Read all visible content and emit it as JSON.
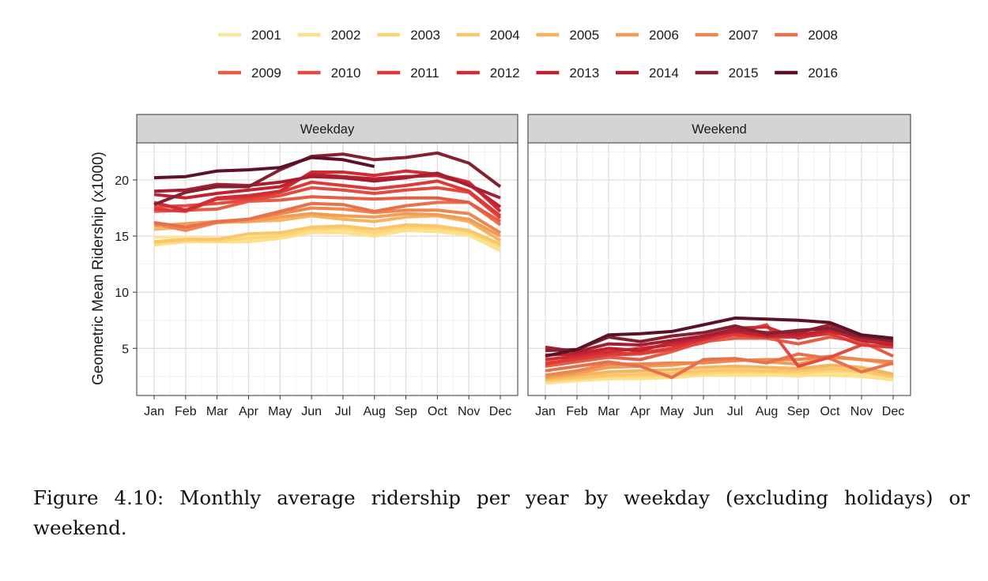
{
  "figure": {
    "caption_line1": "Figure 4.10: Monthly average ridership per year by weekday (excluding holidays) or",
    "caption_line2": "weekend."
  },
  "chart_data": {
    "type": "line",
    "ylabel": "Geometric Mean Ridership (x1000)",
    "xlabel": "",
    "ylim": [
      0.8,
      23.3
    ],
    "yticks": [
      5,
      10,
      15,
      20
    ],
    "grid": true,
    "legend_position": "top",
    "categories": [
      "Jan",
      "Feb",
      "Mar",
      "Apr",
      "May",
      "Jun",
      "Jul",
      "Aug",
      "Sep",
      "Oct",
      "Nov",
      "Dec"
    ],
    "years": [
      "2001",
      "2002",
      "2003",
      "2004",
      "2005",
      "2006",
      "2007",
      "2008",
      "2009",
      "2010",
      "2011",
      "2012",
      "2013",
      "2014",
      "2015",
      "2016"
    ],
    "colors": [
      "#fbe79c",
      "#fde08a",
      "#fcd57a",
      "#f9c66c",
      "#f5b460",
      "#f09d57",
      "#ec8750",
      "#e8704a",
      "#e55d45",
      "#e14b40",
      "#db3a39",
      "#d12b34",
      "#c0232f",
      "#a41f32",
      "#832130",
      "#5a1326"
    ],
    "panels": [
      {
        "title": "Weekday",
        "series": [
          {
            "name": "2001",
            "values": [
              14.9,
              14.9,
              14.8,
              15.0,
              15.1,
              15.5,
              15.5,
              15.2,
              15.6,
              15.6,
              15.3,
              13.9
            ]
          },
          {
            "name": "2002",
            "values": [
              14.2,
              14.5,
              14.5,
              14.5,
              14.8,
              15.3,
              15.3,
              15.0,
              15.5,
              15.4,
              15.1,
              13.7
            ]
          },
          {
            "name": "2003",
            "values": [
              14.4,
              14.6,
              14.6,
              14.8,
              15.0,
              15.6,
              15.7,
              15.3,
              15.8,
              15.7,
              15.4,
              14.1
            ]
          },
          {
            "name": "2004",
            "values": [
              14.5,
              14.7,
              14.7,
              15.2,
              15.3,
              15.8,
              15.9,
              15.6,
              16.0,
              15.9,
              15.5,
              14.3
            ]
          },
          {
            "name": "2005",
            "values": [
              15.6,
              15.8,
              16.2,
              16.3,
              16.4,
              16.8,
              16.5,
              16.3,
              16.7,
              16.8,
              16.3,
              14.6
            ]
          },
          {
            "name": "2006",
            "values": [
              15.9,
              16.1,
              16.3,
              16.3,
              16.7,
              17.0,
              16.8,
              16.7,
              17.0,
              16.9,
              16.5,
              15.0
            ]
          },
          {
            "name": "2007",
            "values": [
              16.1,
              15.5,
              16.2,
              16.5,
              17.0,
              17.5,
              17.4,
              17.1,
              17.3,
              17.3,
              17.0,
              15.3
            ]
          },
          {
            "name": "2008",
            "values": [
              16.2,
              15.8,
              16.3,
              16.5,
              17.2,
              17.9,
              17.8,
              17.2,
              17.7,
              18.0,
              18.0,
              16.0
            ]
          },
          {
            "name": "2009",
            "values": [
              17.2,
              17.3,
              17.4,
              18.1,
              18.2,
              18.5,
              18.4,
              18.3,
              18.4,
              18.4,
              18.0,
              16.3
            ]
          },
          {
            "name": "2010",
            "values": [
              17.6,
              17.7,
              17.9,
              18.2,
              18.6,
              19.3,
              19.1,
              18.8,
              19.1,
              19.3,
              18.9,
              16.6
            ]
          },
          {
            "name": "2011",
            "values": [
              17.4,
              17.2,
              18.3,
              18.4,
              18.9,
              19.8,
              19.5,
              19.2,
              19.5,
              19.9,
              19.0,
              16.8
            ]
          },
          {
            "name": "2012",
            "values": [
              18.0,
              17.3,
              18.4,
              18.6,
              19.0,
              20.7,
              20.7,
              20.4,
              20.8,
              20.5,
              19.8,
              17.2
            ]
          },
          {
            "name": "2013",
            "values": [
              18.7,
              18.4,
              18.8,
              19.1,
              19.4,
              20.5,
              20.3,
              20.1,
              20.3,
              20.4,
              19.6,
              17.6
            ]
          },
          {
            "name": "2014",
            "values": [
              19.0,
              19.1,
              19.6,
              19.5,
              19.8,
              20.3,
              20.2,
              19.9,
              20.2,
              20.6,
              19.5,
              18.4
            ]
          },
          {
            "name": "2015",
            "values": [
              17.8,
              18.9,
              19.4,
              19.4,
              20.9,
              22.1,
              22.3,
              21.8,
              22.0,
              22.4,
              21.5,
              19.4
            ]
          },
          {
            "name": "2016",
            "values": [
              20.2,
              20.3,
              20.8,
              20.9,
              21.1,
              22.0,
              21.8,
              21.2,
              null,
              null,
              null,
              null
            ]
          }
        ]
      },
      {
        "title": "Weekend",
        "series": [
          {
            "name": "2001",
            "values": [
              1.9,
              2.1,
              2.3,
              2.4,
              2.5,
              2.7,
              2.8,
              2.7,
              2.5,
              2.8,
              2.7,
              2.3
            ]
          },
          {
            "name": "2002",
            "values": [
              2.0,
              2.2,
              2.3,
              2.3,
              2.4,
              2.6,
              2.6,
              2.6,
              2.6,
              2.6,
              2.5,
              2.2
            ]
          },
          {
            "name": "2003",
            "values": [
              2.1,
              2.3,
              2.5,
              2.5,
              2.6,
              2.8,
              2.9,
              2.9,
              2.8,
              3.0,
              2.9,
              2.4
            ]
          },
          {
            "name": "2004",
            "values": [
              2.2,
              2.4,
              2.6,
              2.7,
              2.8,
              3.0,
              3.1,
              3.0,
              3.0,
              3.2,
              3.0,
              2.5
            ]
          },
          {
            "name": "2005",
            "values": [
              2.3,
              2.6,
              2.9,
              3.0,
              3.1,
              3.3,
              3.4,
              3.3,
              3.2,
              3.5,
              3.3,
              2.7
            ]
          },
          {
            "name": "2006",
            "values": [
              2.4,
              2.8,
              3.3,
              3.4,
              3.5,
              3.8,
              4.0,
              3.8,
              3.6,
              4.2,
              4.0,
              3.6
            ]
          },
          {
            "name": "2007",
            "values": [
              2.6,
              3.0,
              3.6,
              3.6,
              3.7,
              3.7,
              3.9,
              4.0,
              4.0,
              4.3,
              4.0,
              3.8
            ]
          },
          {
            "name": "2008",
            "values": [
              3.0,
              3.4,
              3.8,
              3.4,
              2.4,
              4.0,
              4.1,
              3.7,
              4.5,
              4.1,
              2.9,
              3.7
            ]
          },
          {
            "name": "2009",
            "values": [
              3.4,
              3.8,
              4.2,
              4.0,
              4.7,
              5.6,
              5.9,
              5.9,
              5.4,
              6.0,
              5.6,
              4.3
            ]
          },
          {
            "name": "2010",
            "values": [
              3.7,
              4.0,
              4.4,
              4.5,
              4.9,
              5.5,
              6.4,
              7.1,
              3.4,
              4.2,
              5.3,
              5.1
            ]
          },
          {
            "name": "2011",
            "values": [
              3.6,
              4.1,
              4.5,
              4.6,
              5.0,
              5.8,
              6.2,
              6.0,
              6.0,
              6.3,
              5.3,
              5.1
            ]
          },
          {
            "name": "2012",
            "values": [
              4.0,
              4.3,
              4.7,
              5.0,
              5.3,
              5.8,
              6.8,
              6.9,
              5.9,
              6.5,
              5.9,
              5.4
            ]
          },
          {
            "name": "2013",
            "values": [
              4.4,
              4.5,
              5.0,
              4.8,
              5.5,
              6.0,
              6.5,
              6.1,
              6.2,
              6.6,
              5.7,
              5.3
            ]
          },
          {
            "name": "2014",
            "values": [
              5.1,
              4.7,
              5.4,
              5.3,
              5.7,
              6.1,
              6.7,
              6.4,
              6.4,
              7.1,
              6.1,
              5.6
            ]
          },
          {
            "name": "2015",
            "values": [
              4.8,
              4.9,
              6.0,
              5.6,
              6.1,
              6.4,
              7.0,
              6.3,
              6.6,
              6.8,
              6.0,
              5.7
            ]
          },
          {
            "name": "2016",
            "values": [
              4.3,
              4.9,
              6.2,
              6.3,
              6.5,
              7.1,
              7.7,
              7.6,
              7.5,
              7.3,
              6.2,
              5.9
            ]
          }
        ]
      }
    ]
  }
}
